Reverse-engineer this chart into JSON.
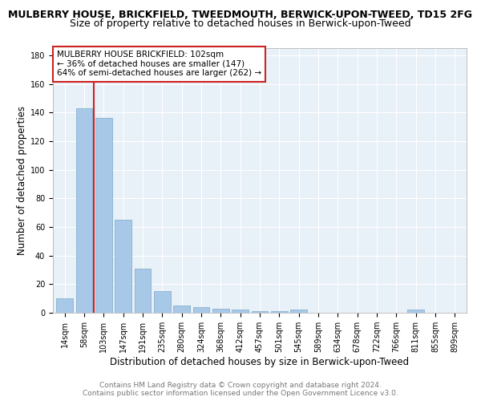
{
  "title": "MULBERRY HOUSE, BRICKFIELD, TWEEDMOUTH, BERWICK-UPON-TWEED, TD15 2FG",
  "subtitle": "Size of property relative to detached houses in Berwick-upon-Tweed",
  "xlabel": "Distribution of detached houses by size in Berwick-upon-Tweed",
  "ylabel": "Number of detached properties",
  "categories": [
    "14sqm",
    "58sqm",
    "103sqm",
    "147sqm",
    "191sqm",
    "235sqm",
    "280sqm",
    "324sqm",
    "368sqm",
    "412sqm",
    "457sqm",
    "501sqm",
    "545sqm",
    "589sqm",
    "634sqm",
    "678sqm",
    "722sqm",
    "766sqm",
    "811sqm",
    "855sqm",
    "899sqm"
  ],
  "values": [
    10,
    143,
    136,
    65,
    31,
    15,
    5,
    4,
    3,
    2,
    1,
    1,
    2,
    0,
    0,
    0,
    0,
    0,
    2,
    0,
    0
  ],
  "bar_color": "#a8c8e8",
  "bar_edge_color": "#7aaac8",
  "vline_color": "#cc2222",
  "annotation_title": "MULBERRY HOUSE BRICKFIELD: 102sqm",
  "annotation_line2": "← 36% of detached houses are smaller (147)",
  "annotation_line3": "64% of semi-detached houses are larger (262) →",
  "annotation_box_color": "#cc2222",
  "ylim": [
    0,
    185
  ],
  "yticks": [
    0,
    20,
    40,
    60,
    80,
    100,
    120,
    140,
    160,
    180
  ],
  "footer_line1": "Contains HM Land Registry data © Crown copyright and database right 2024.",
  "footer_line2": "Contains public sector information licensed under the Open Government Licence v3.0.",
  "plot_bg_color": "#e8f0f8",
  "grid_color": "#ffffff",
  "title_fontsize": 9,
  "subtitle_fontsize": 9,
  "xlabel_fontsize": 8.5,
  "ylabel_fontsize": 8.5,
  "tick_fontsize": 7,
  "footer_fontsize": 6.5,
  "annotation_fontsize": 7.5
}
